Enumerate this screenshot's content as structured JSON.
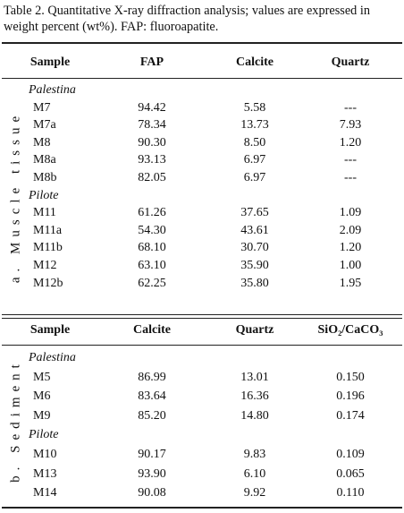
{
  "caption": "Table 2. Quantitative X-ray diffraction analysis; values are expressed in weight percent (wt%). FAP: fluoroapatite.",
  "sections": [
    {
      "label": "a. Muscle tissue",
      "header": [
        "Sample",
        "FAP",
        "Calcite",
        "Quartz"
      ],
      "groups": [
        {
          "name": "Palestina",
          "rows": [
            [
              "M7",
              "94.42",
              "5.58",
              "---"
            ],
            [
              "M7a",
              "78.34",
              "13.73",
              "7.93"
            ],
            [
              "M8",
              "90.30",
              "8.50",
              "1.20"
            ],
            [
              "M8a",
              "93.13",
              "6.97",
              "---"
            ],
            [
              "M8b",
              "82.05",
              "6.97",
              "---"
            ]
          ]
        },
        {
          "name": "Pilote",
          "rows": [
            [
              "M11",
              "61.26",
              "37.65",
              "1.09"
            ],
            [
              "M11a",
              "54.30",
              "43.61",
              "2.09"
            ],
            [
              "M11b",
              "68.10",
              "30.70",
              "1.20"
            ],
            [
              "M12",
              "63.10",
              "35.90",
              "1.00"
            ],
            [
              "M12b",
              "62.25",
              "35.80",
              "1.95"
            ]
          ]
        }
      ]
    },
    {
      "label": "b. Sediment",
      "header": [
        "Sample",
        "Calcite",
        "Quartz",
        "SiO₂/CaCO₃"
      ],
      "groups": [
        {
          "name": "Palestina",
          "rows": [
            [
              "M5",
              "86.99",
              "13.01",
              "0.150"
            ],
            [
              "M6",
              "83.64",
              "16.36",
              "0.196"
            ],
            [
              "M9",
              "85.20",
              "14.80",
              "0.174"
            ]
          ]
        },
        {
          "name": "Pilote",
          "rows": [
            [
              "M10",
              "90.17",
              "9.83",
              "0.109"
            ],
            [
              "M13",
              "93.90",
              "6.10",
              "0.065"
            ],
            [
              "M14",
              "90.08",
              "9.92",
              "0.110"
            ]
          ]
        }
      ]
    }
  ]
}
